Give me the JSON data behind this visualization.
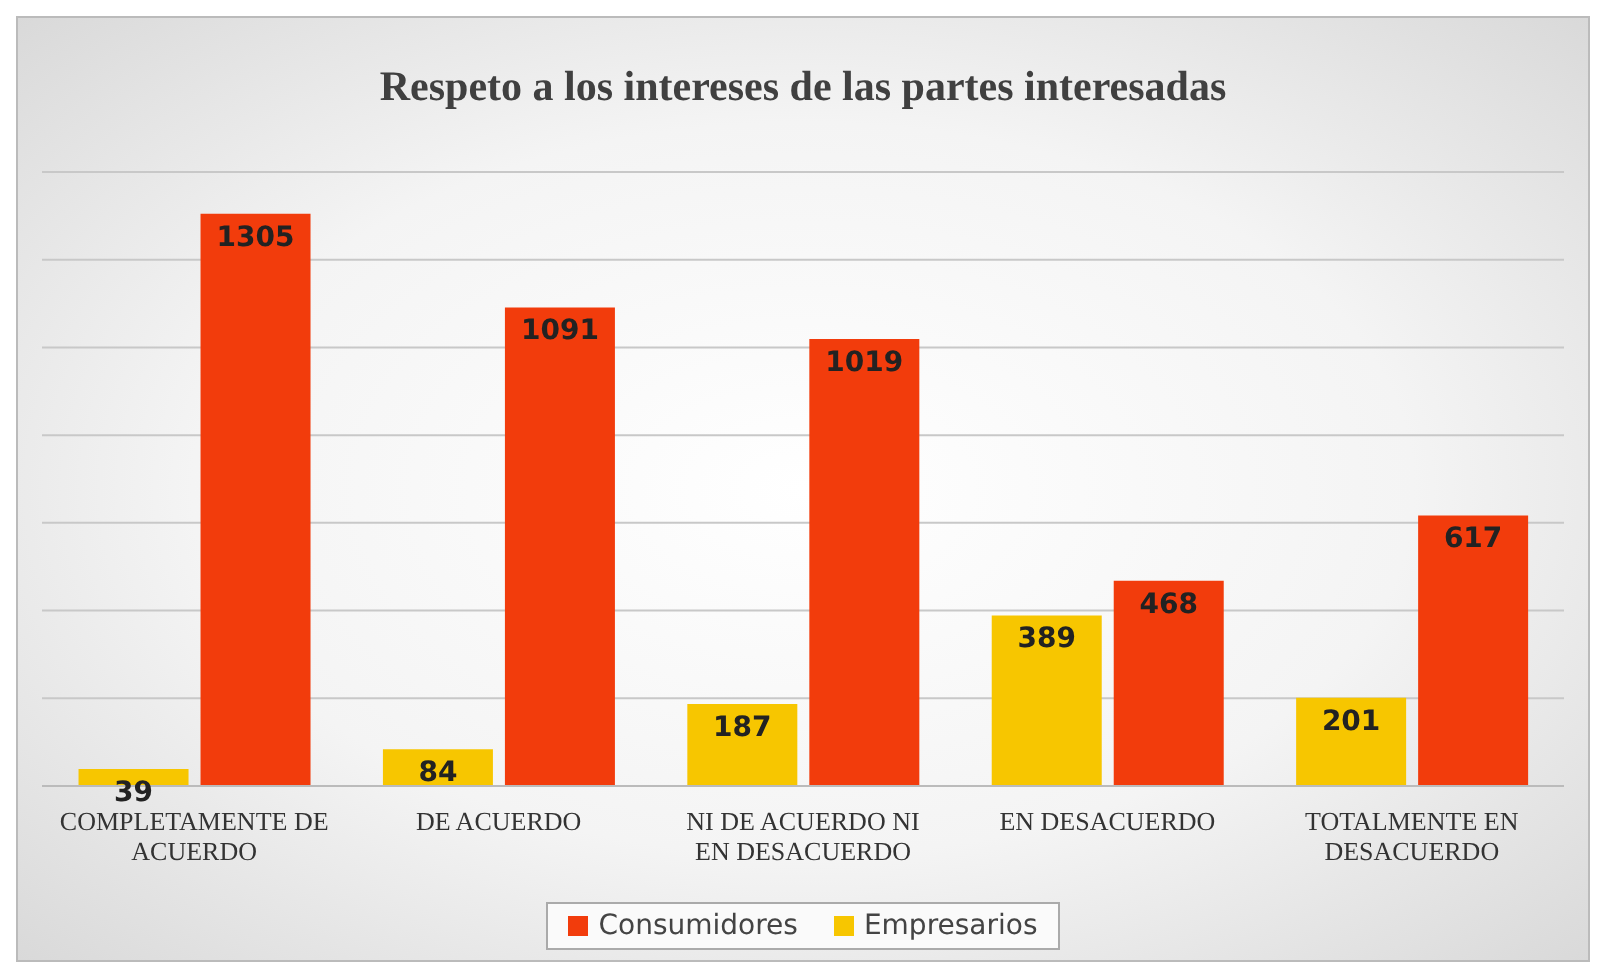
{
  "chart_data": {
    "type": "bar",
    "title": "Respeto a los intereses de las partes interesadas",
    "categories": [
      "COMPLETAMENTE DE ACUERDO",
      "DE ACUERDO",
      "NI DE ACUERDO NI EN DESACUERDO",
      "EN DESACUERDO",
      "TOTALMENTE EN DESACUERDO"
    ],
    "series": [
      {
        "name": "Empresarios",
        "color": "#f7c600",
        "values": [
          39,
          84,
          187,
          389,
          201
        ]
      },
      {
        "name": "Consumidores",
        "color": "#f23c0c",
        "values": [
          1305,
          1091,
          1019,
          468,
          617
        ]
      }
    ],
    "ylim": [
      0,
      1400
    ],
    "yticks": [
      {
        "value": 0,
        "label": null
      },
      {
        "value": 200,
        "label": null
      },
      {
        "value": 400,
        "label": null
      },
      {
        "value": 600,
        "label": null
      },
      {
        "value": 800,
        "label": null
      },
      {
        "value": 1000,
        "label": null
      },
      {
        "value": 1200,
        "label": null
      },
      {
        "value": 1400,
        "label": null
      }
    ],
    "grid": "y",
    "legend": "bottom",
    "data_labels": true,
    "tick_labels": "x"
  }
}
